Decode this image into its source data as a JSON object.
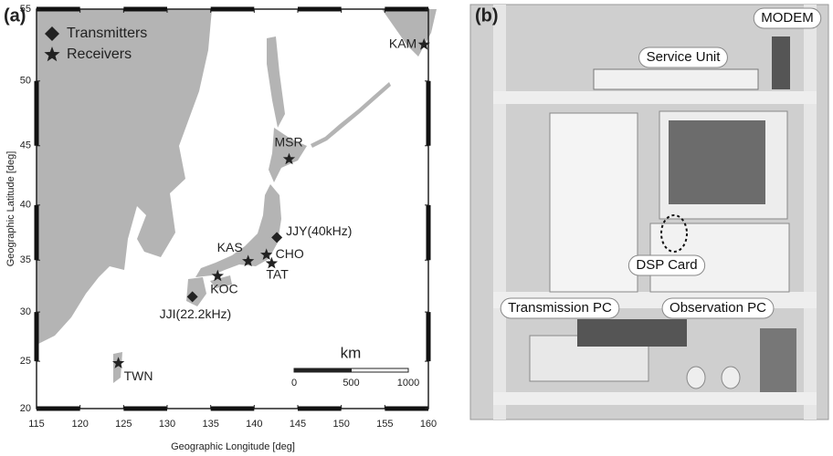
{
  "chart_data": {
    "type": "scatter",
    "panel_label": "(a)",
    "x_label": "Geographic Longitude [deg]",
    "y_label": "Geographic Latitude [deg]",
    "projection": "mercator",
    "legend": "upper left",
    "xlim": [
      115,
      160
    ],
    "ylim": [
      20,
      55
    ],
    "xticks": [
      115,
      120,
      125,
      130,
      135,
      140,
      145,
      150,
      155,
      160
    ],
    "yticks": [
      20,
      25,
      30,
      35,
      40,
      45,
      50,
      55
    ],
    "series": [
      {
        "name": "Transmitters",
        "marker": "diamond",
        "color": "#222",
        "labels": [
          "JJY(40kHz)",
          "JJI(22.2kHz)"
        ],
        "x": [
          142.6,
          132.9
        ],
        "values": [
          37.1,
          31.5
        ]
      },
      {
        "name": "Receivers",
        "marker": "star",
        "color": "#222",
        "labels": [
          "KAM",
          "MSR",
          "KAS",
          "CHO",
          "TAT",
          "KOC",
          "TWN"
        ],
        "x": [
          159.5,
          144.0,
          139.3,
          141.4,
          142.0,
          135.8,
          124.4
        ],
        "values": [
          52.6,
          43.9,
          34.9,
          35.5,
          34.7,
          33.5,
          24.8
        ]
      }
    ],
    "scale_bar": {
      "title": "km",
      "ticks": [
        0,
        500,
        1000
      ]
    }
  },
  "photo": {
    "panel_label": "(b)",
    "labels": [
      "MODEM",
      "Service Unit",
      "DSP Card",
      "Transmission PC",
      "Observation PC"
    ]
  }
}
